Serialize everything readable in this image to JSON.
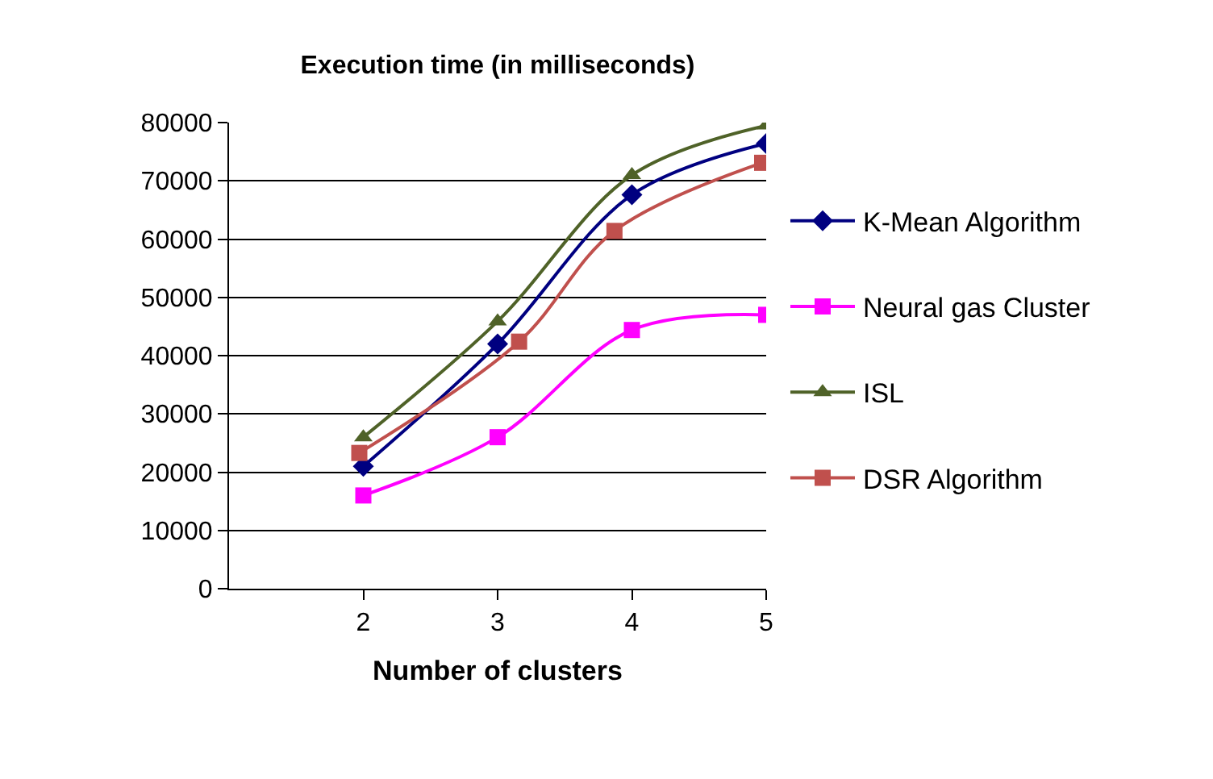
{
  "chart_data": {
    "type": "line",
    "title": "Execution time (in milliseconds)",
    "xlabel": "Number of clusters",
    "x": [
      2,
      3,
      4,
      5
    ],
    "series": [
      {
        "name": "K-Mean Algorithm",
        "color": "#000080",
        "marker": "diamond",
        "values": [
          21000,
          42000,
          67600,
          76400
        ]
      },
      {
        "name": "Neural gas Cluster",
        "color": "#ff00ff",
        "marker": "square",
        "values": [
          16000,
          26000,
          44400,
          47000
        ]
      },
      {
        "name": "ISL",
        "color": "#4f6228",
        "marker": "triangle",
        "values": [
          26000,
          45900,
          71000,
          79500
        ]
      },
      {
        "name": "DSR Algorithm",
        "color": "#c0504d",
        "marker": "square",
        "x": [
          1.97,
          3.16,
          3.87,
          4.97
        ],
        "values": [
          23300,
          42400,
          61400,
          73100
        ]
      }
    ],
    "xlim": [
      1,
      5
    ],
    "xticks": [
      2,
      3,
      4,
      5
    ],
    "ylim": [
      0,
      80000
    ],
    "yticks": [
      0,
      10000,
      20000,
      30000,
      40000,
      50000,
      60000,
      70000,
      80000
    ],
    "grid": "y",
    "legend": "right"
  }
}
